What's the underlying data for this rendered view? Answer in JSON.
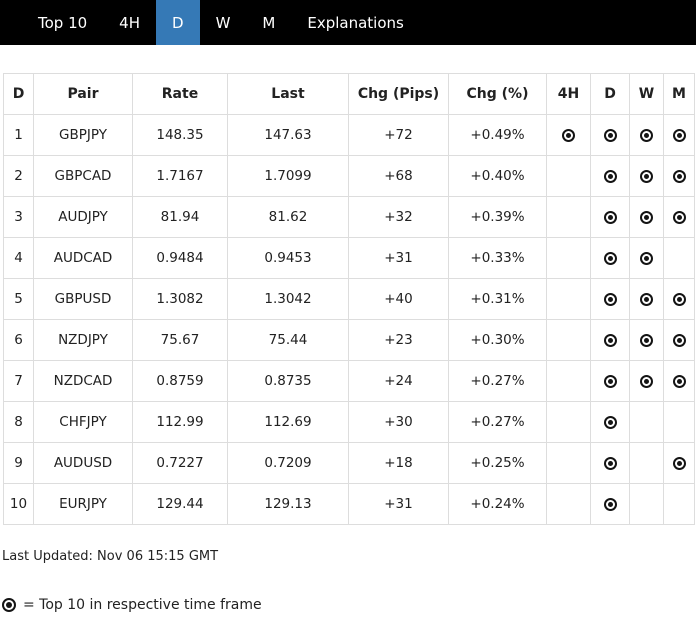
{
  "nav": {
    "tabs": [
      {
        "label": "Top 10",
        "active": false
      },
      {
        "label": "4H",
        "active": false
      },
      {
        "label": "D",
        "active": true
      },
      {
        "label": "W",
        "active": false
      },
      {
        "label": "M",
        "active": false
      },
      {
        "label": "Explanations",
        "active": false
      }
    ]
  },
  "table": {
    "headers": [
      "D",
      "Pair",
      "Rate",
      "Last",
      "Chg (Pips)",
      "Chg (%)",
      "4H",
      "D",
      "W",
      "M"
    ],
    "frame_keys": [
      "4h",
      "d",
      "w",
      "m"
    ],
    "rows": [
      {
        "rank": "1",
        "pair": "GBPJPY",
        "rate": "148.35",
        "last": "147.63",
        "chg_pips": "+72",
        "chg_pct": "+0.49%",
        "frames": [
          true,
          true,
          true,
          true
        ]
      },
      {
        "rank": "2",
        "pair": "GBPCAD",
        "rate": "1.7167",
        "last": "1.7099",
        "chg_pips": "+68",
        "chg_pct": "+0.40%",
        "frames": [
          false,
          true,
          true,
          true
        ]
      },
      {
        "rank": "3",
        "pair": "AUDJPY",
        "rate": "81.94",
        "last": "81.62",
        "chg_pips": "+32",
        "chg_pct": "+0.39%",
        "frames": [
          false,
          true,
          true,
          true
        ]
      },
      {
        "rank": "4",
        "pair": "AUDCAD",
        "rate": "0.9484",
        "last": "0.9453",
        "chg_pips": "+31",
        "chg_pct": "+0.33%",
        "frames": [
          false,
          true,
          true,
          false
        ]
      },
      {
        "rank": "5",
        "pair": "GBPUSD",
        "rate": "1.3082",
        "last": "1.3042",
        "chg_pips": "+40",
        "chg_pct": "+0.31%",
        "frames": [
          false,
          true,
          true,
          true
        ]
      },
      {
        "rank": "6",
        "pair": "NZDJPY",
        "rate": "75.67",
        "last": "75.44",
        "chg_pips": "+23",
        "chg_pct": "+0.30%",
        "frames": [
          false,
          true,
          true,
          true
        ]
      },
      {
        "rank": "7",
        "pair": "NZDCAD",
        "rate": "0.8759",
        "last": "0.8735",
        "chg_pips": "+24",
        "chg_pct": "+0.27%",
        "frames": [
          false,
          true,
          true,
          true
        ]
      },
      {
        "rank": "8",
        "pair": "CHFJPY",
        "rate": "112.99",
        "last": "112.69",
        "chg_pips": "+30",
        "chg_pct": "+0.27%",
        "frames": [
          false,
          true,
          false,
          false
        ]
      },
      {
        "rank": "9",
        "pair": "AUDUSD",
        "rate": "0.7227",
        "last": "0.7209",
        "chg_pips": "+18",
        "chg_pct": "+0.25%",
        "frames": [
          false,
          true,
          false,
          true
        ]
      },
      {
        "rank": "10",
        "pair": "EURJPY",
        "rate": "129.44",
        "last": "129.13",
        "chg_pips": "+31",
        "chg_pct": "+0.24%",
        "frames": [
          false,
          true,
          false,
          false
        ]
      }
    ]
  },
  "footer": {
    "last_updated": "Last Updated: Nov 06 15:15 GMT",
    "legend_text": "= Top 10 in respective time frame"
  },
  "colors": {
    "accent": "#3579b6",
    "nav_bg": "#000000",
    "border": "#dddddd",
    "icon": "#141414"
  }
}
